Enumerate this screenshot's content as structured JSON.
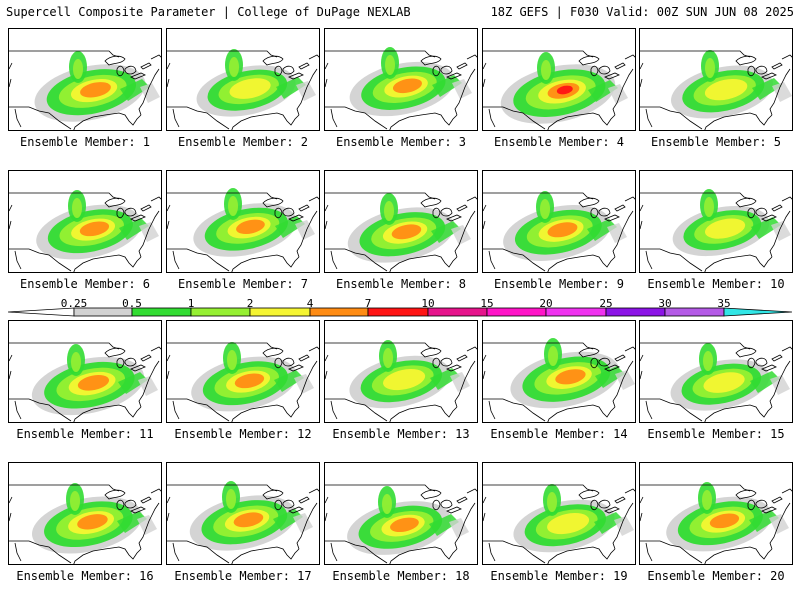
{
  "header": {
    "left": "Supercell Composite Parameter | College of DuPage NEXLAB",
    "right": "18Z GEFS | F030 Valid: 00Z SUN JUN 08 2025"
  },
  "member_prefix": "Ensemble Member: ",
  "members": [
    {
      "number": "1",
      "intensity": 0.82
    },
    {
      "number": "2",
      "intensity": 0.55
    },
    {
      "number": "3",
      "intensity": 0.68
    },
    {
      "number": "4",
      "intensity": 0.9
    },
    {
      "number": "5",
      "intensity": 0.62
    },
    {
      "number": "6",
      "intensity": 0.7
    },
    {
      "number": "7",
      "intensity": 0.65
    },
    {
      "number": "8",
      "intensity": 0.72
    },
    {
      "number": "9",
      "intensity": 0.75
    },
    {
      "number": "10",
      "intensity": 0.5
    },
    {
      "number": "11",
      "intensity": 0.85
    },
    {
      "number": "12",
      "intensity": 0.7
    },
    {
      "number": "13",
      "intensity": 0.6
    },
    {
      "number": "14",
      "intensity": 0.78
    },
    {
      "number": "15",
      "intensity": 0.55
    },
    {
      "number": "16",
      "intensity": 0.8
    },
    {
      "number": "17",
      "intensity": 0.72
    },
    {
      "number": "18",
      "intensity": 0.66
    },
    {
      "number": "19",
      "intensity": 0.6
    },
    {
      "number": "20",
      "intensity": 0.7
    }
  ],
  "colorbar": {
    "ticks": [
      "0.25",
      "0.5",
      "1",
      "2",
      "4",
      "7",
      "10",
      "15",
      "20",
      "25",
      "30",
      "35"
    ],
    "colors": [
      "#d2d2d2",
      "#32dc32",
      "#96f032",
      "#f5f532",
      "#ff8c14",
      "#ff1414",
      "#e6148c",
      "#ff14c8",
      "#f032f0",
      "#8c14e6",
      "#b45ae6",
      "#32e6e6"
    ],
    "below_color": "#ffffff"
  }
}
